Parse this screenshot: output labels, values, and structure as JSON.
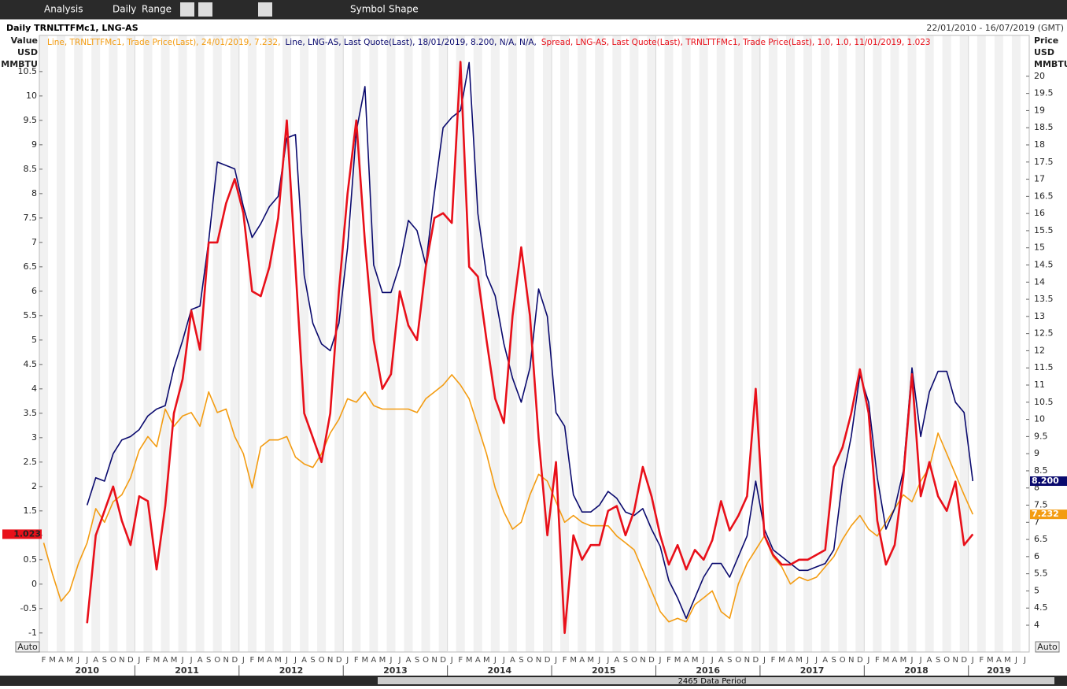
{
  "toolbar": {
    "items": [
      "Analysis",
      "Daily",
      "Range",
      "Symbol",
      "Shape"
    ]
  },
  "chart_data": {
    "type": "line",
    "title": "Daily TRNLTTFMc1, LNG-AS",
    "date_range": "22/01/2010 - 16/07/2019 (GMT)",
    "y_label": [
      "Value",
      "USD",
      "MMBTU"
    ],
    "y2_label": [
      "Price",
      "USD",
      "MMBTU"
    ],
    "axis_buttons": [
      "Auto",
      "Auto"
    ],
    "categories": [
      "F",
      "M",
      "A",
      "M",
      "J",
      "J",
      "A",
      "S",
      "O",
      "N",
      "D",
      "J",
      "F",
      "M",
      "A",
      "M",
      "J",
      "J",
      "A",
      "S",
      "O",
      "N",
      "D",
      "J",
      "F",
      "M",
      "A",
      "M",
      "J",
      "J",
      "A",
      "S",
      "O",
      "N",
      "D",
      "J",
      "F",
      "M",
      "A",
      "M",
      "J",
      "J",
      "A",
      "S",
      "O",
      "N",
      "D",
      "J",
      "F",
      "M",
      "A",
      "M",
      "J",
      "J",
      "A",
      "S",
      "O",
      "N",
      "D",
      "J",
      "F",
      "M",
      "A",
      "M",
      "J",
      "J",
      "A",
      "S",
      "O",
      "N",
      "D",
      "J",
      "F",
      "M",
      "A",
      "M",
      "J",
      "J",
      "A",
      "S",
      "O",
      "N",
      "D",
      "J",
      "F",
      "M",
      "A",
      "M",
      "J",
      "J",
      "A",
      "S",
      "O",
      "N",
      "D",
      "J",
      "F",
      "M",
      "A",
      "M",
      "J",
      "J",
      "A",
      "S",
      "O",
      "N",
      "D",
      "J",
      "F",
      "M",
      "A",
      "M",
      "J",
      "J"
    ],
    "years": [
      "2010",
      "2011",
      "2012",
      "2013",
      "2014",
      "2015",
      "2016",
      "2017",
      "2018",
      "2019"
    ],
    "ylim": [
      -1.39,
      11.24
    ],
    "yticks": [
      -1,
      -0.5,
      0,
      0.5,
      1,
      1.5,
      2,
      2.5,
      3,
      3.5,
      4,
      4.5,
      5,
      5.5,
      6,
      6.5,
      7,
      7.5,
      8,
      8.5,
      9,
      9.5,
      10,
      10.5
    ],
    "y2lim": [
      3.22,
      21.19
    ],
    "y2ticks": [
      4,
      4.5,
      5,
      5.5,
      6,
      6.5,
      7,
      7.5,
      8,
      8.5,
      9,
      9.5,
      10,
      10.5,
      11,
      11.5,
      12,
      12.5,
      13,
      13.5,
      14,
      14.5,
      15,
      15.5,
      16,
      16.5,
      17,
      17.5,
      18,
      18.5,
      19,
      19.5,
      20
    ],
    "series": [
      {
        "name": "Line, TRNLTTFMc1, Trade Price(Last),  24/01/2019, 7.232,",
        "color": "#f39c12",
        "axis": "y2",
        "end_label": "7.232",
        "values": [
          6.4,
          5.5,
          4.7,
          5.0,
          5.8,
          6.4,
          7.4,
          7.0,
          7.6,
          7.8,
          8.3,
          9.1,
          9.5,
          9.2,
          10.3,
          9.8,
          10.1,
          10.2,
          9.8,
          10.8,
          10.2,
          10.3,
          9.5,
          9.0,
          8.0,
          9.2,
          9.4,
          9.4,
          9.5,
          8.9,
          8.7,
          8.6,
          9.0,
          9.6,
          10.0,
          10.6,
          10.5,
          10.8,
          10.4,
          10.3,
          10.3,
          10.3,
          10.3,
          10.2,
          10.6,
          10.8,
          11.0,
          11.3,
          11.0,
          10.6,
          9.8,
          9.0,
          8.0,
          7.3,
          6.8,
          7.0,
          7.8,
          8.4,
          8.2,
          7.6,
          7.0,
          7.2,
          7.0,
          6.9,
          6.9,
          6.9,
          6.6,
          6.4,
          6.2,
          5.6,
          5.0,
          4.4,
          4.1,
          4.2,
          4.1,
          4.6,
          4.8,
          5.0,
          4.4,
          4.2,
          5.2,
          5.8,
          6.2,
          6.6,
          6.0,
          5.7,
          5.2,
          5.4,
          5.3,
          5.4,
          5.7,
          6.0,
          6.5,
          6.9,
          7.2,
          6.8,
          6.6,
          7.0,
          7.4,
          7.8,
          7.6,
          8.2,
          8.6,
          9.6,
          9.0,
          8.4,
          7.8,
          7.232,
          null,
          null,
          null,
          null,
          null,
          null
        ]
      },
      {
        "name": "Line, LNG-AS, Last Quote(Last),  18/01/2019, 8.200, N/A, N/A,",
        "color": "#0a0a6e",
        "axis": "y2",
        "end_label": "8.200",
        "values": [
          null,
          null,
          null,
          null,
          null,
          7.5,
          8.3,
          8.2,
          9.0,
          9.4,
          9.5,
          9.7,
          10.1,
          10.3,
          10.4,
          11.5,
          12.3,
          13.2,
          13.3,
          15.2,
          17.5,
          17.4,
          17.3,
          16.2,
          15.3,
          15.7,
          16.2,
          16.5,
          18.2,
          18.3,
          14.2,
          12.8,
          12.2,
          12.0,
          12.8,
          15.0,
          18.4,
          19.7,
          14.5,
          13.7,
          13.7,
          14.5,
          15.8,
          15.5,
          14.5,
          16.6,
          18.5,
          18.8,
          19.0,
          20.4,
          16.0,
          14.2,
          13.6,
          12.2,
          11.2,
          10.5,
          11.5,
          13.8,
          13.0,
          10.2,
          9.8,
          7.8,
          7.3,
          7.3,
          7.5,
          7.9,
          7.7,
          7.3,
          7.2,
          7.4,
          6.8,
          6.3,
          5.3,
          4.8,
          4.2,
          4.8,
          5.4,
          5.8,
          5.8,
          5.4,
          6.0,
          6.6,
          8.2,
          6.8,
          6.2,
          6.0,
          5.8,
          5.6,
          5.6,
          5.7,
          5.8,
          6.2,
          8.2,
          9.5,
          11.3,
          10.5,
          8.3,
          6.8,
          7.4,
          8.5,
          11.5,
          9.5,
          10.8,
          11.4,
          11.4,
          10.5,
          10.2,
          8.2,
          null,
          null,
          null,
          null,
          null,
          null
        ]
      },
      {
        "name": "Spread, LNG-AS, Last Quote(Last), TRNLTTFMc1, Trade Price(Last),  1.0, 1.0, 11/01/2019, 1.023",
        "color": "#e8101a",
        "axis": "y",
        "end_label": "1.023",
        "values": [
          null,
          null,
          null,
          null,
          null,
          -0.8,
          1.0,
          1.5,
          2.0,
          1.3,
          0.8,
          1.8,
          1.7,
          0.3,
          1.6,
          3.5,
          4.2,
          5.6,
          4.8,
          7.0,
          7.0,
          7.8,
          8.3,
          7.6,
          6.0,
          5.9,
          6.5,
          7.5,
          9.5,
          6.5,
          3.5,
          3.0,
          2.5,
          3.5,
          6.0,
          8.0,
          9.5,
          7.0,
          5.0,
          4.0,
          4.3,
          6.0,
          5.3,
          5.0,
          6.5,
          7.5,
          7.6,
          7.4,
          10.7,
          6.5,
          6.3,
          5.0,
          3.8,
          3.3,
          5.5,
          6.9,
          5.5,
          3.0,
          1.0,
          2.5,
          -1.0,
          1.0,
          0.5,
          0.8,
          0.8,
          1.5,
          1.6,
          1.0,
          1.5,
          2.4,
          1.8,
          1.0,
          0.4,
          0.8,
          0.3,
          0.7,
          0.5,
          0.9,
          1.7,
          1.1,
          1.4,
          1.8,
          4.0,
          1.0,
          0.6,
          0.4,
          0.4,
          0.5,
          0.5,
          0.6,
          0.7,
          2.4,
          2.8,
          3.5,
          4.4,
          3.5,
          1.3,
          0.4,
          0.8,
          2.2,
          4.3,
          1.8,
          2.5,
          1.8,
          1.5,
          2.1,
          0.8,
          1.023,
          null,
          null,
          null,
          null,
          null,
          null
        ]
      }
    ]
  },
  "footer": {
    "data_period": "2465 Data Period"
  }
}
